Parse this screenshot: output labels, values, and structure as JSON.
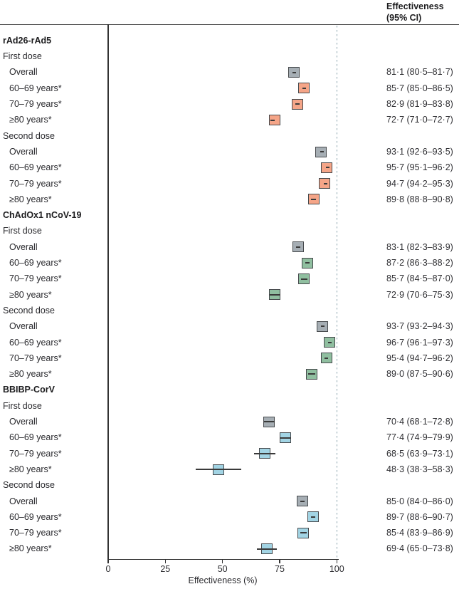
{
  "figure": {
    "header": {
      "line1": "Effectiveness",
      "line2": "(95% CI)"
    }
  },
  "colors": {
    "overall": "#a6aeb4",
    "rad26": "#f5a588",
    "chadox": "#90bfa0",
    "bbibp": "#a2d4e4",
    "marker_border": "#46494c",
    "ci_line": "#3a3a3a",
    "axis": "#333333",
    "header_rule": "#4d4d4d",
    "reference_line": "#8ba4ad"
  },
  "chart_data": {
    "type": "forest",
    "title": "Effectiveness (95% CI)",
    "x_axis": {
      "label": "Effectiveness (%)",
      "range": [
        0,
        100
      ],
      "ticks": [
        0,
        25,
        50,
        75,
        100
      ],
      "reference_line": 100,
      "grid": false
    },
    "rows": [
      {
        "kind": "group",
        "label": "rAd26-rAd5"
      },
      {
        "kind": "subgroup",
        "label": "First dose"
      },
      {
        "kind": "data",
        "label": "Overall",
        "series": "overall",
        "estimate": 81.1,
        "lo": 80.5,
        "hi": 81.7,
        "text": "81·1 (80·5–81·7)"
      },
      {
        "kind": "data",
        "label": "60–69 years*",
        "series": "rad26",
        "estimate": 85.7,
        "lo": 85.0,
        "hi": 86.5,
        "text": "85·7 (85·0–86·5)"
      },
      {
        "kind": "data",
        "label": "70–79 years*",
        "series": "rad26",
        "estimate": 82.9,
        "lo": 81.9,
        "hi": 83.8,
        "text": "82·9 (81·9–83·8)"
      },
      {
        "kind": "data",
        "label": "≥80 years*",
        "series": "rad26",
        "estimate": 72.7,
        "lo": 71.0,
        "hi": 72.7,
        "text": "72·7 (71·0–72·7)"
      },
      {
        "kind": "subgroup",
        "label": "Second dose"
      },
      {
        "kind": "data",
        "label": "Overall",
        "series": "overall",
        "estimate": 93.1,
        "lo": 92.6,
        "hi": 93.5,
        "text": "93·1 (92·6–93·5)"
      },
      {
        "kind": "data",
        "label": "60–69 years*",
        "series": "rad26",
        "estimate": 95.7,
        "lo": 95.1,
        "hi": 96.2,
        "text": "95·7 (95·1–96·2)"
      },
      {
        "kind": "data",
        "label": "70–79 years*",
        "series": "rad26",
        "estimate": 94.7,
        "lo": 94.2,
        "hi": 95.3,
        "text": "94·7 (94·2–95·3)"
      },
      {
        "kind": "data",
        "label": "≥80 years*",
        "series": "rad26",
        "estimate": 89.8,
        "lo": 88.8,
        "hi": 90.8,
        "text": "89·8 (88·8–90·8)"
      },
      {
        "kind": "group",
        "label": "ChAdOx1 nCoV-19"
      },
      {
        "kind": "subgroup",
        "label": "First dose"
      },
      {
        "kind": "data",
        "label": "Overall",
        "series": "overall",
        "estimate": 83.1,
        "lo": 82.3,
        "hi": 83.9,
        "text": "83·1 (82·3–83·9)"
      },
      {
        "kind": "data",
        "label": "60–69 years*",
        "series": "chadox",
        "estimate": 87.2,
        "lo": 86.3,
        "hi": 88.2,
        "text": "87·2 (86·3–88·2)"
      },
      {
        "kind": "data",
        "label": "70–79 years*",
        "series": "chadox",
        "estimate": 85.7,
        "lo": 84.5,
        "hi": 87.0,
        "text": "85·7 (84·5–87·0)"
      },
      {
        "kind": "data",
        "label": "≥80 years*",
        "series": "chadox",
        "estimate": 72.9,
        "lo": 70.6,
        "hi": 75.3,
        "text": "72·9 (70·6–75·3)"
      },
      {
        "kind": "subgroup",
        "label": "Second dose"
      },
      {
        "kind": "data",
        "label": "Overall",
        "series": "overall",
        "estimate": 93.7,
        "lo": 93.2,
        "hi": 94.3,
        "text": "93·7 (93·2–94·3)"
      },
      {
        "kind": "data",
        "label": "60–69 years*",
        "series": "chadox",
        "estimate": 96.7,
        "lo": 96.1,
        "hi": 97.3,
        "text": "96·7 (96·1–97·3)"
      },
      {
        "kind": "data",
        "label": "70–79 years*",
        "series": "chadox",
        "estimate": 95.4,
        "lo": 94.7,
        "hi": 96.2,
        "text": "95·4 (94·7–96·2)"
      },
      {
        "kind": "data",
        "label": "≥80 years*",
        "series": "chadox",
        "estimate": 89.0,
        "lo": 87.5,
        "hi": 90.6,
        "text": "89·0 (87·5–90·6)"
      },
      {
        "kind": "group",
        "label": "BBIBP-CorV"
      },
      {
        "kind": "subgroup",
        "label": "First dose"
      },
      {
        "kind": "data",
        "label": "Overall",
        "series": "overall",
        "estimate": 70.4,
        "lo": 68.1,
        "hi": 72.8,
        "text": "70·4 (68·1–72·8)"
      },
      {
        "kind": "data",
        "label": "60–69 years*",
        "series": "bbibp",
        "estimate": 77.4,
        "lo": 74.9,
        "hi": 79.9,
        "text": "77·4 (74·9–79·9)"
      },
      {
        "kind": "data",
        "label": "70–79 years*",
        "series": "bbibp",
        "estimate": 68.5,
        "lo": 63.9,
        "hi": 73.1,
        "text": "68·5 (63·9–73·1)"
      },
      {
        "kind": "data",
        "label": "≥80 years*",
        "series": "bbibp",
        "estimate": 48.3,
        "lo": 38.3,
        "hi": 58.3,
        "text": "48·3 (38·3–58·3)"
      },
      {
        "kind": "subgroup",
        "label": "Second dose"
      },
      {
        "kind": "data",
        "label": "Overall",
        "series": "overall",
        "estimate": 85.0,
        "lo": 84.0,
        "hi": 86.0,
        "text": "85·0 (84·0–86·0)"
      },
      {
        "kind": "data",
        "label": "60–69 years*",
        "series": "bbibp",
        "estimate": 89.7,
        "lo": 88.6,
        "hi": 90.7,
        "text": "89·7 (88·6–90·7)"
      },
      {
        "kind": "data",
        "label": "70–79 years*",
        "series": "bbibp",
        "estimate": 85.4,
        "lo": 83.9,
        "hi": 86.9,
        "text": "85·4 (83·9–86·9)"
      },
      {
        "kind": "data",
        "label": "≥80 years*",
        "series": "bbibp",
        "estimate": 69.4,
        "lo": 65.0,
        "hi": 73.8,
        "text": "69·4 (65·0–73·8)"
      }
    ]
  }
}
